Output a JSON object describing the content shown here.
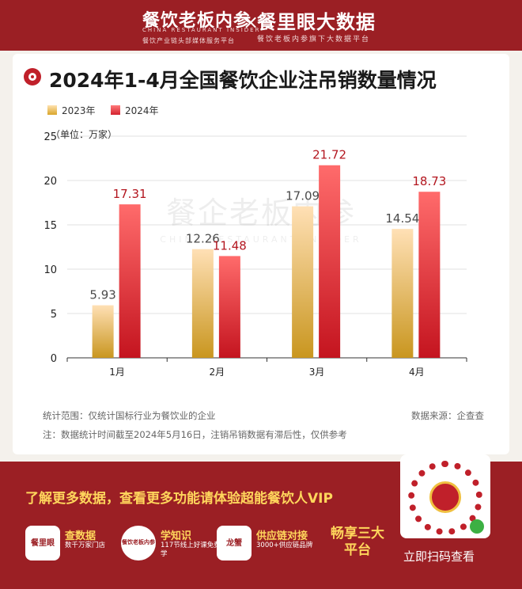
{
  "header": {
    "brand1": "餐饮老板内参",
    "brand1_en": "CHINA RESTAURANT INSIDER",
    "brand1_tagline": "餐饮产业链头部媒体服务平台",
    "separator": "×",
    "brand2": "餐里眼大数据",
    "brand2_tagline": "餐饮老板内参旗下大数据平台"
  },
  "title": "2024年1-4月全国餐饮企业注吊销数量情况",
  "watermark": {
    "cn": "餐企老板内参",
    "en": "CHINA RESTAURANT INSIDER"
  },
  "chart_data": {
    "type": "bar",
    "categories": [
      "1月",
      "2月",
      "3月",
      "4月"
    ],
    "series": [
      {
        "name": "2023年",
        "values": [
          5.93,
          12.26,
          17.09,
          14.54
        ],
        "color": "#d9a62a"
      },
      {
        "name": "2024年",
        "values": [
          17.31,
          11.48,
          21.72,
          18.73
        ],
        "color": "#d3212f"
      }
    ],
    "value_labels": [
      [
        "5.93",
        "12.26",
        "17.09",
        "14.54"
      ],
      [
        "17.31",
        "11.48",
        "21.72",
        "18.73"
      ]
    ],
    "ylabel": "（单位：万家）",
    "ylim": [
      0,
      25
    ],
    "yticks": [
      "0",
      "5",
      "10",
      "15",
      "20",
      "25"
    ],
    "ytick_values": [
      0,
      5,
      10,
      15,
      20,
      25
    ],
    "grid": true,
    "legend": "top-left"
  },
  "notes": {
    "scope": "统计范围：仅统计国标行业为餐饮业的企业",
    "source": "数据来源：企查查",
    "remark": "注：数据统计时间截至2024年5月16日，注销吊销数据有滞后性，仅供参考"
  },
  "footer": {
    "cta": "了解更多数据，查看更多功能请体验超能餐饮人VIP",
    "features": [
      {
        "icon": "餐里眼",
        "icon_en": "CANLIYAN",
        "title": "查数据",
        "desc": "数千万家门店"
      },
      {
        "icon": "餐饮老板内参",
        "icon_en": "",
        "title": "学知识",
        "desc": "117节线上好课免费学"
      },
      {
        "icon": "龙蟹",
        "icon_en": "",
        "title": "供应链对接",
        "desc": "3000+供应链品牌"
      }
    ],
    "enjoy": "畅享三大平台",
    "scan": "立即扫码查看"
  }
}
